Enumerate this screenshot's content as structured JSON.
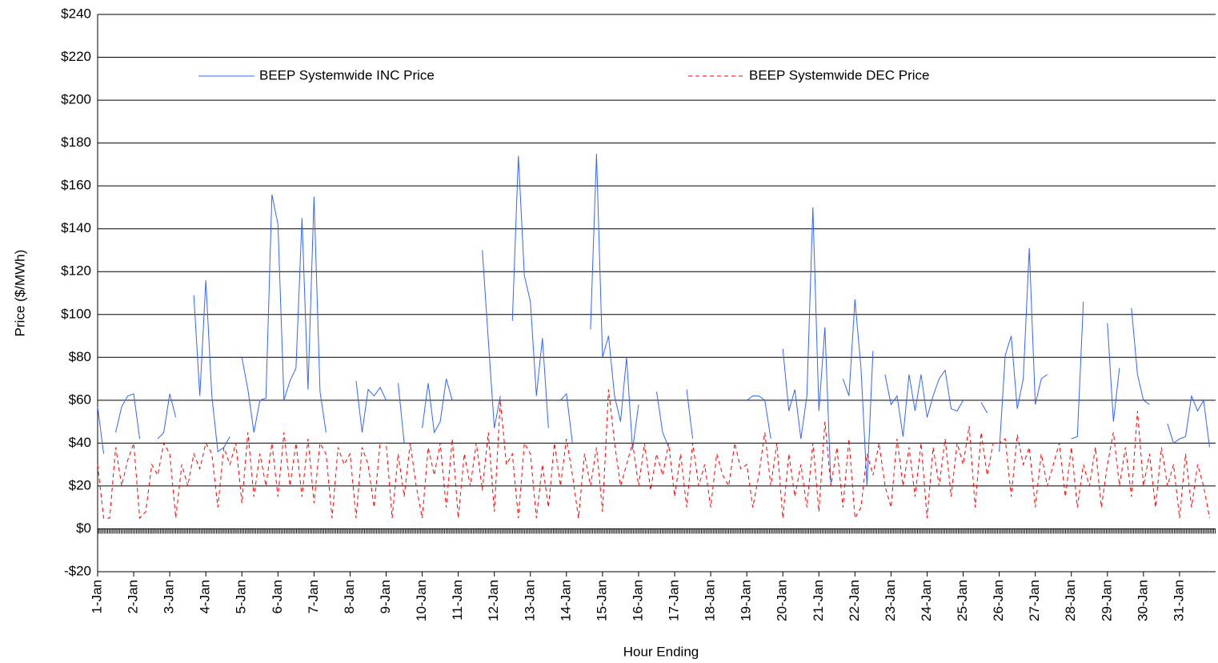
{
  "chart_data": {
    "type": "line",
    "x_label": "Hour Ending",
    "y_label": "Price ($/MWh)",
    "xlim": [
      0,
      744
    ],
    "ylim": [
      -20,
      240
    ],
    "yticks": [
      {
        "value": -20,
        "label": "-$20"
      },
      {
        "value": 0,
        "label": "$0"
      },
      {
        "value": 20,
        "label": "$20"
      },
      {
        "value": 40,
        "label": "$40"
      },
      {
        "value": 60,
        "label": "$60"
      },
      {
        "value": 80,
        "label": "$80"
      },
      {
        "value": 100,
        "label": "$100"
      },
      {
        "value": 120,
        "label": "$120"
      },
      {
        "value": 140,
        "label": "$140"
      },
      {
        "value": 160,
        "label": "$160"
      },
      {
        "value": 180,
        "label": "$180"
      },
      {
        "value": 200,
        "label": "$200"
      },
      {
        "value": 220,
        "label": "$220"
      },
      {
        "value": 240,
        "label": "$240"
      }
    ],
    "xticks": [
      {
        "value": 0,
        "label": "1-Jan"
      },
      {
        "value": 24,
        "label": "2-Jan"
      },
      {
        "value": 48,
        "label": "3-Jan"
      },
      {
        "value": 72,
        "label": "4-Jan"
      },
      {
        "value": 96,
        "label": "5-Jan"
      },
      {
        "value": 120,
        "label": "6-Jan"
      },
      {
        "value": 144,
        "label": "7-Jan"
      },
      {
        "value": 168,
        "label": "8-Jan"
      },
      {
        "value": 192,
        "label": "9-Jan"
      },
      {
        "value": 216,
        "label": "10-Jan"
      },
      {
        "value": 240,
        "label": "11-Jan"
      },
      {
        "value": 264,
        "label": "12-Jan"
      },
      {
        "value": 288,
        "label": "13-Jan"
      },
      {
        "value": 312,
        "label": "14-Jan"
      },
      {
        "value": 336,
        "label": "15-Jan"
      },
      {
        "value": 360,
        "label": "16-Jan"
      },
      {
        "value": 384,
        "label": "17-Jan"
      },
      {
        "value": 408,
        "label": "18-Jan"
      },
      {
        "value": 432,
        "label": "19-Jan"
      },
      {
        "value": 456,
        "label": "20-Jan"
      },
      {
        "value": 480,
        "label": "21-Jan"
      },
      {
        "value": 504,
        "label": "22-Jan"
      },
      {
        "value": 528,
        "label": "23-Jan"
      },
      {
        "value": 552,
        "label": "24-Jan"
      },
      {
        "value": 576,
        "label": "25-Jan"
      },
      {
        "value": 600,
        "label": "26-Jan"
      },
      {
        "value": 624,
        "label": "27-Jan"
      },
      {
        "value": 648,
        "label": "28-Jan"
      },
      {
        "value": 672,
        "label": "29-Jan"
      },
      {
        "value": 696,
        "label": "30-Jan"
      },
      {
        "value": 720,
        "label": "31-Jan"
      }
    ],
    "grid": true,
    "legend": "top",
    "x": [
      0,
      4,
      8,
      12,
      16,
      20,
      24,
      28,
      32,
      36,
      40,
      44,
      48,
      52,
      56,
      60,
      64,
      68,
      72,
      76,
      80,
      84,
      88,
      92,
      96,
      100,
      104,
      108,
      112,
      116,
      120,
      124,
      128,
      132,
      136,
      140,
      144,
      148,
      152,
      156,
      160,
      164,
      168,
      172,
      176,
      180,
      184,
      188,
      192,
      196,
      200,
      204,
      208,
      212,
      216,
      220,
      224,
      228,
      232,
      236,
      240,
      244,
      248,
      252,
      256,
      260,
      264,
      268,
      272,
      276,
      280,
      284,
      288,
      292,
      296,
      300,
      304,
      308,
      312,
      316,
      320,
      324,
      328,
      332,
      336,
      340,
      344,
      348,
      352,
      356,
      360,
      364,
      368,
      372,
      376,
      380,
      384,
      388,
      392,
      396,
      400,
      404,
      408,
      412,
      416,
      420,
      424,
      428,
      432,
      436,
      440,
      444,
      448,
      452,
      456,
      460,
      464,
      468,
      472,
      476,
      480,
      484,
      488,
      492,
      496,
      500,
      504,
      508,
      512,
      516,
      520,
      524,
      528,
      532,
      536,
      540,
      544,
      548,
      552,
      556,
      560,
      564,
      568,
      572,
      576,
      580,
      584,
      588,
      592,
      596,
      600,
      604,
      608,
      612,
      616,
      620,
      624,
      628,
      632,
      636,
      640,
      644,
      648,
      652,
      656,
      660,
      664,
      668,
      672,
      676,
      680,
      684,
      688,
      692,
      696,
      700,
      704,
      708,
      712,
      716,
      720,
      724,
      728,
      732,
      736,
      740
    ],
    "series": [
      {
        "name": "BEEP Systemwide INC Price",
        "color": "#3366ff",
        "dash": false,
        "values": [
          57,
          35,
          null,
          45,
          57,
          62,
          63,
          42,
          null,
          null,
          42,
          45,
          63,
          52,
          null,
          null,
          109,
          62,
          116,
          62,
          36,
          38,
          43,
          null,
          80,
          65,
          45,
          60,
          61,
          156,
          142,
          60,
          69,
          75,
          145,
          65,
          155,
          64,
          45,
          null,
          null,
          null,
          null,
          69,
          45,
          65,
          62,
          66,
          60,
          null,
          68,
          40,
          null,
          null,
          47,
          68,
          45,
          50,
          70,
          60,
          null,
          null,
          45,
          null,
          130,
          88,
          47,
          62,
          null,
          97,
          174,
          118,
          106,
          62,
          89,
          47,
          null,
          60,
          63,
          40,
          null,
          null,
          93,
          175,
          80,
          90,
          62,
          50,
          80,
          37,
          58,
          null,
          null,
          64,
          45,
          38,
          null,
          null,
          65,
          42,
          null,
          null,
          null,
          null,
          64,
          null,
          null,
          null,
          60,
          62,
          62,
          60,
          42,
          null,
          84,
          55,
          65,
          42,
          62,
          150,
          55,
          94,
          20,
          null,
          70,
          62,
          107,
          75,
          20,
          83,
          null,
          72,
          58,
          62,
          43,
          72,
          55,
          72,
          52,
          62,
          70,
          74,
          56,
          55,
          60,
          null,
          null,
          59,
          54,
          null,
          36,
          81,
          90,
          56,
          70,
          131,
          58,
          70,
          72,
          null,
          null,
          null,
          42,
          43,
          106,
          null,
          null,
          null,
          96,
          50,
          75,
          null,
          103,
          72,
          60,
          58,
          null,
          null,
          49,
          40,
          42,
          43,
          62,
          55,
          60,
          38
        ]
      },
      {
        "name": "BEEP Systemwide DEC Price",
        "color": "#ff0000",
        "dash": true,
        "values": [
          30,
          5,
          5,
          38,
          20,
          32,
          40,
          5,
          8,
          30,
          25,
          40,
          35,
          5,
          30,
          20,
          35,
          28,
          40,
          35,
          10,
          38,
          30,
          40,
          12,
          45,
          15,
          35,
          20,
          40,
          15,
          45,
          20,
          40,
          15,
          42,
          12,
          40,
          35,
          5,
          38,
          30,
          35,
          5,
          38,
          30,
          10,
          40,
          40,
          5,
          35,
          15,
          40,
          20,
          5,
          38,
          25,
          40,
          10,
          42,
          5,
          35,
          20,
          40,
          18,
          45,
          8,
          60,
          30,
          35,
          5,
          40,
          35,
          5,
          30,
          10,
          40,
          20,
          42,
          25,
          5,
          35,
          20,
          38,
          8,
          65,
          40,
          20,
          30,
          40,
          20,
          40,
          18,
          35,
          25,
          40,
          15,
          35,
          10,
          40,
          20,
          30,
          10,
          35,
          25,
          20,
          40,
          28,
          30,
          10,
          25,
          45,
          20,
          40,
          5,
          35,
          15,
          30,
          10,
          40,
          8,
          50,
          20,
          38,
          10,
          42,
          5,
          10,
          35,
          25,
          40,
          20,
          10,
          42,
          20,
          38,
          15,
          40,
          5,
          38,
          20,
          42,
          15,
          40,
          30,
          48,
          10,
          45,
          25,
          40,
          40,
          42,
          15,
          44,
          30,
          38,
          10,
          35,
          20,
          30,
          40,
          15,
          38,
          10,
          30,
          20,
          38,
          10,
          30,
          45,
          20,
          38,
          15,
          55,
          20,
          35,
          10,
          38,
          20,
          30,
          5,
          35,
          10,
          30,
          20,
          5
        ]
      }
    ]
  }
}
